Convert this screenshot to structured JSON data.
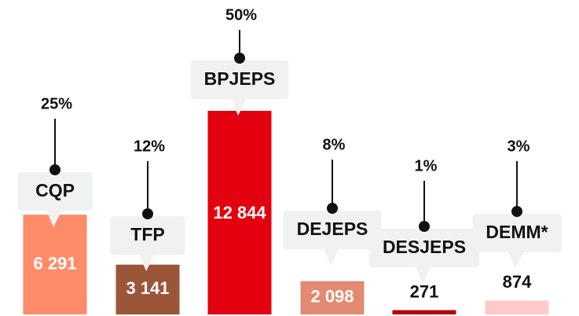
{
  "chart_data": {
    "type": "bar",
    "categories": [
      "CQP",
      "TFP",
      "BPJEPS",
      "DEJEPS",
      "DESJEPS",
      "DEMM*"
    ],
    "values": [
      6291,
      3141,
      12844,
      2098,
      271,
      874
    ],
    "value_labels": [
      "6 291",
      "3 141",
      "12 844",
      "2 098",
      "271",
      "874"
    ],
    "percentages": [
      25,
      12,
      50,
      8,
      1,
      3
    ],
    "percentage_labels": [
      "25%",
      "12%",
      "50%",
      "8%",
      "1%",
      "3%"
    ],
    "colors": [
      "#ff8c69",
      "#9b5639",
      "#e3000f",
      "#e38a72",
      "#b5000d",
      "#ffc9c9"
    ]
  }
}
